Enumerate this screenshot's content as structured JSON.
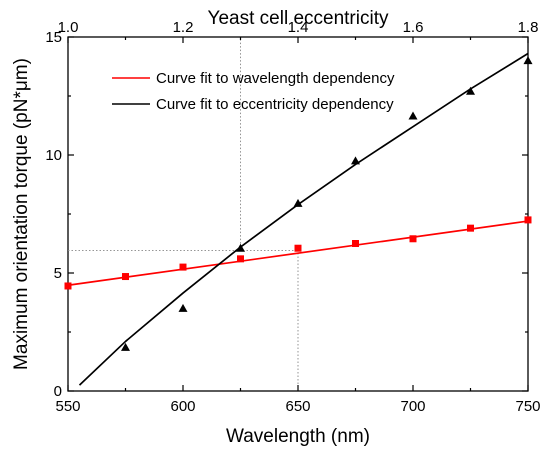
{
  "chart_data": {
    "type": "line",
    "title": "",
    "xlabel": "Wavelength (nm)",
    "x2label": "Yeast cell eccentricity",
    "ylabel": "Maximum orientation torque (pN*μm)",
    "xlim": [
      550,
      750
    ],
    "x2lim": [
      1.0,
      1.8
    ],
    "ylim": [
      0,
      15
    ],
    "xticks": [
      "550",
      "600",
      "650",
      "700",
      "750"
    ],
    "x2ticks": [
      "1.0",
      "1.2",
      "1.4",
      "1.6",
      "1.8"
    ],
    "yticks": [
      "0",
      "5",
      "10",
      "15"
    ],
    "grid": false,
    "legend_position": "top-left",
    "series": [
      {
        "name": "Curve fit to wavelength dependency",
        "axis": "bottom",
        "color": "#ff0000",
        "marker": "square",
        "points": {
          "x": [
            550,
            575,
            600,
            625,
            650,
            675,
            700,
            725,
            750
          ],
          "y": [
            4.45,
            4.85,
            5.25,
            5.6,
            6.05,
            6.25,
            6.45,
            6.9,
            7.25
          ]
        },
        "fit": {
          "x": [
            550,
            750
          ],
          "y": [
            4.48,
            7.2
          ]
        }
      },
      {
        "name": "Curve fit to eccentricity dependency",
        "axis": "top",
        "color": "#000000",
        "marker": "triangle",
        "points": {
          "x": [
            1.1,
            1.2,
            1.3,
            1.4,
            1.5,
            1.6,
            1.7,
            1.8
          ],
          "y": [
            1.85,
            3.5,
            6.05,
            7.95,
            9.75,
            11.65,
            12.7,
            14.0
          ]
        },
        "fit": {
          "x": [
            1.02,
            1.1,
            1.2,
            1.3,
            1.4,
            1.5,
            1.6,
            1.7,
            1.8
          ],
          "y": [
            0.25,
            2.1,
            4.15,
            6.1,
            7.9,
            9.6,
            11.2,
            12.8,
            14.3
          ]
        }
      }
    ],
    "reference_lines": [
      {
        "orientation": "vertical",
        "axis": "bottom",
        "value": 650,
        "from_y": 0,
        "to_y": 5.95
      },
      {
        "orientation": "vertical",
        "axis": "top",
        "value": 1.3,
        "from_y": 5.95,
        "to_y": 15
      },
      {
        "orientation": "horizontal",
        "value": 5.95,
        "from_x": 550,
        "to_x": 650
      }
    ]
  }
}
